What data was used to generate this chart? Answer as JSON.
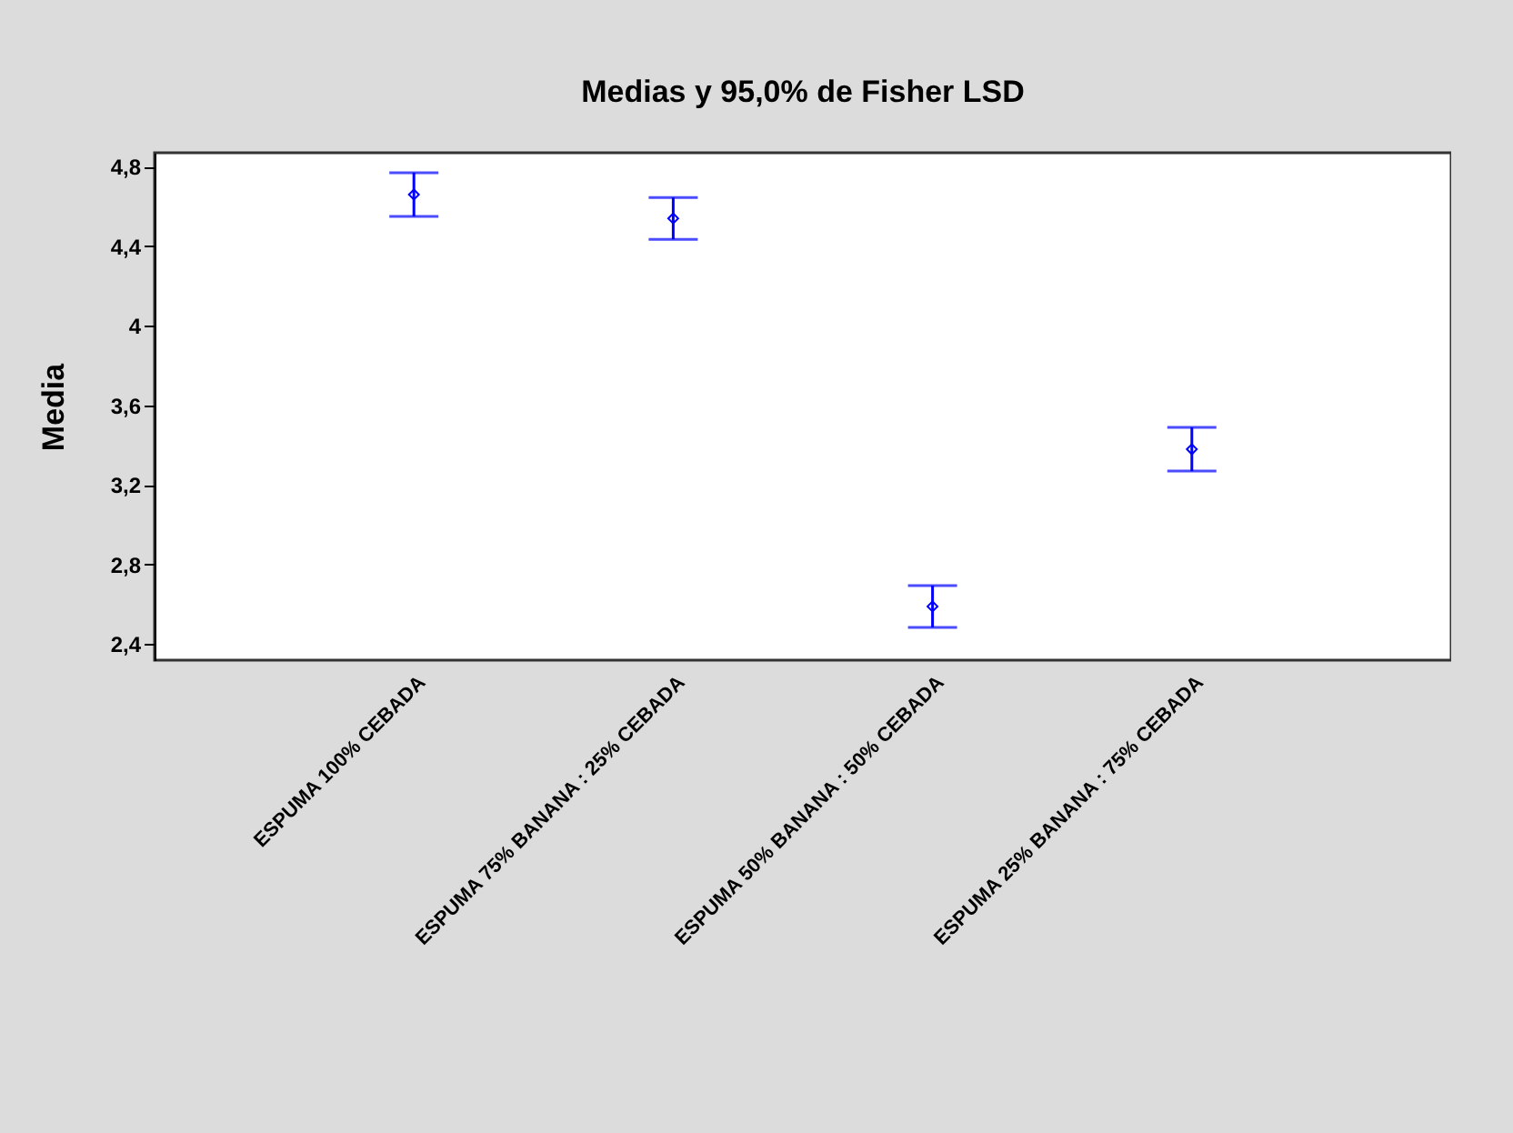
{
  "chart_data": {
    "type": "scatter",
    "title": "Medias y 95,0% de Fisher LSD",
    "ylabel": "Media",
    "categories": [
      "ESPUMA 100% CEBADA",
      "ESPUMA 75% BANANA : 25% CEBADA",
      "ESPUMA 50% BANANA : 50% CEBADA",
      "ESPUMA 25% BANANA : 75% CEBADA"
    ],
    "series": [
      {
        "color": "#0000ff",
        "values": [
          4.66,
          4.54,
          2.59,
          3.38
        ],
        "errors": [
          0.11,
          0.105,
          0.105,
          0.11
        ]
      }
    ],
    "ylim": [
      2.32,
      4.87
    ],
    "yticks": [
      {
        "value": 2.4,
        "label": "2,4"
      },
      {
        "value": 2.8,
        "label": "2,8"
      },
      {
        "value": 3.2,
        "label": "3,2"
      },
      {
        "value": 3.6,
        "label": "3,6"
      },
      {
        "value": 4,
        "label": "4"
      },
      {
        "value": 4.4,
        "label": "4,4"
      },
      {
        "value": 4.8,
        "label": "4,8"
      }
    ],
    "marker": "diamond",
    "grid": false
  }
}
